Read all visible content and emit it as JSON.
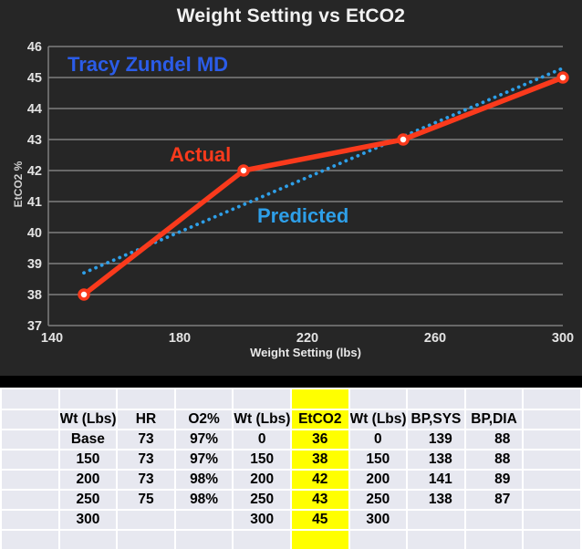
{
  "chart": {
    "background": "#262626",
    "annotations": {
      "author": {
        "text": "Tracy Zundel MD",
        "color": "#2b5ce8"
      },
      "actual": {
        "text": "Actual",
        "color": "#fa3a1c"
      },
      "predicted": {
        "text": "Predicted",
        "color": "#2e9fe8"
      }
    }
  },
  "chart_data": {
    "type": "line",
    "title": "Weight Setting vs EtCO2",
    "xlabel": "Weight Setting (lbs)",
    "ylabel": "EtCO2 %",
    "xlim": [
      140,
      300
    ],
    "ylim": [
      37,
      46
    ],
    "x_ticks": [
      140,
      180,
      220,
      260,
      300
    ],
    "y_ticks": [
      37,
      38,
      39,
      40,
      41,
      42,
      43,
      44,
      45,
      46
    ],
    "grid": true,
    "grid_color": "#7f7f7f",
    "tick_label_color": "#e3e3e3",
    "legend_position": "none",
    "series": [
      {
        "name": "Actual",
        "style": "solid",
        "markers": true,
        "color": "#fa3a1c",
        "x": [
          150,
          200,
          250,
          300
        ],
        "y": [
          38,
          42,
          43,
          45
        ]
      },
      {
        "name": "Predicted",
        "style": "dotted",
        "markers": false,
        "color": "#2e9fe8",
        "x": [
          150,
          300
        ],
        "y": [
          38.7,
          45.3
        ]
      }
    ]
  },
  "table": {
    "highlight_column": "EtCO2",
    "highlight_color": "#ffff00",
    "cell_background": "#e7e8f0",
    "headers": [
      "",
      "Wt (Lbs)",
      "HR",
      "O2%",
      "Wt (Lbs)",
      "EtCO2",
      "Wt (Lbs)",
      "BP,SYS",
      "BP,DIA",
      ""
    ],
    "rows": [
      [
        "",
        "Base",
        "73",
        "97%",
        "0",
        "36",
        "0",
        "139",
        "88",
        ""
      ],
      [
        "",
        "150",
        "73",
        "97%",
        "150",
        "38",
        "150",
        "138",
        "88",
        ""
      ],
      [
        "",
        "200",
        "73",
        "98%",
        "200",
        "42",
        "200",
        "141",
        "89",
        ""
      ],
      [
        "",
        "250",
        "75",
        "98%",
        "250",
        "43",
        "250",
        "138",
        "87",
        ""
      ],
      [
        "",
        "300",
        "",
        "",
        "300",
        "45",
        "300",
        "",
        "",
        ""
      ],
      [
        "",
        "",
        "",
        "",
        "",
        "",
        "",
        "",
        "",
        ""
      ]
    ]
  }
}
